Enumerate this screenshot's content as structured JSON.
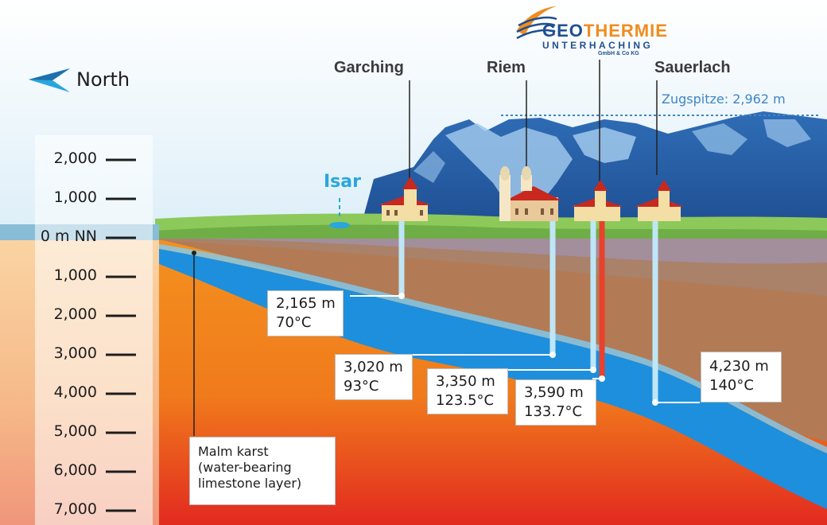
{
  "logo": {
    "geo": "GEO",
    "thermie": "THERMIE",
    "sub": "UNTERHACHING",
    "co": "GmbH & Co KG"
  },
  "north_label": "North",
  "scale_labels": [
    "2,000",
    "1,000",
    "0 m NN",
    "1,000",
    "2,000",
    "3,000",
    "4,000",
    "5,000",
    "6,000",
    "7,000"
  ],
  "towns": [
    "Garching",
    "Riem",
    "Sauerlach"
  ],
  "river": "Isar",
  "peak": "Zugspitze: 2,962 m",
  "wells": [
    {
      "depth": "2,165 m",
      "temp": "70°C"
    },
    {
      "depth": "3,020 m",
      "temp": "93°C"
    },
    {
      "depth": "3,350 m",
      "temp": "123.5°C"
    },
    {
      "depth": "3,590 m",
      "temp": "133.7°C"
    },
    {
      "depth": "4,230 m",
      "temp": "140°C"
    }
  ],
  "aquifer_label": [
    "Malm karst",
    "(water-bearing",
    "limestone layer)"
  ],
  "colors": {
    "aquifer": "#1e8fdc",
    "deep_rock": "#f28a1e",
    "mountains": "#2d6fb4",
    "hot_well": "#e8412c",
    "cold_well": "#bfe6f7"
  }
}
